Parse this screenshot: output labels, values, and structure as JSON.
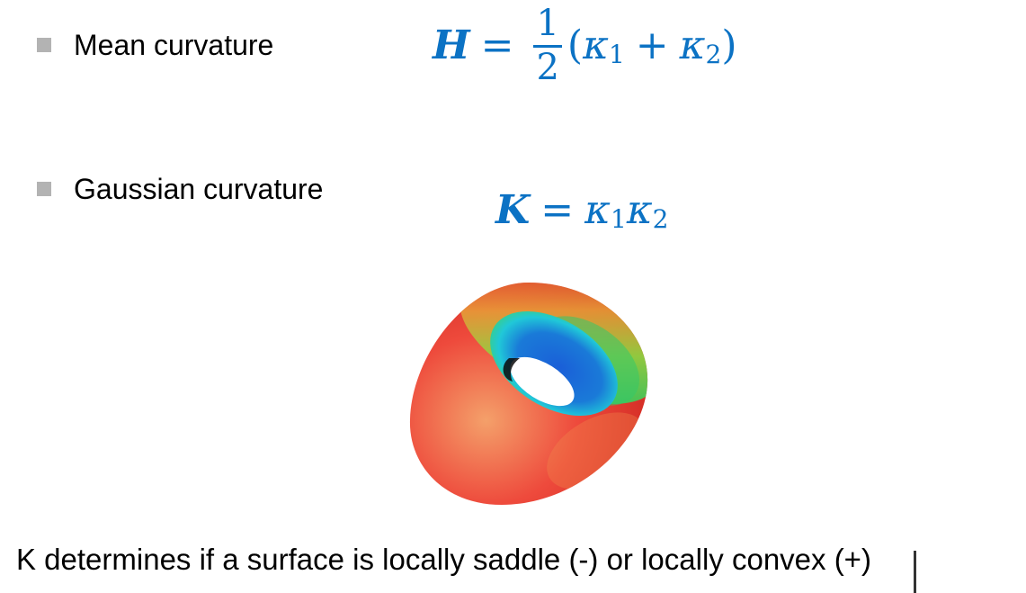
{
  "bullets": [
    {
      "label": "Mean curvature"
    },
    {
      "label": "Gaussian curvature"
    }
  ],
  "formulas": {
    "mean": {
      "lhs": "H",
      "equals": "=",
      "frac_num": "1",
      "frac_den": "2",
      "open_paren": "(",
      "kappa": "κ",
      "sub1": "1",
      "plus": "+",
      "sub2": "2",
      "close_paren": ")"
    },
    "gaussian": {
      "lhs": "K",
      "equals": "=",
      "kappa": "κ",
      "sub1": "1",
      "sub2": "2"
    }
  },
  "caption": "K determines if a surface is locally saddle (-) or locally convex (+)",
  "figure": {
    "icon": "torus-curvature-heatmap",
    "colors": {
      "red": "#f0403a",
      "orange": "#f07a3a",
      "yellow": "#d8d838",
      "green": "#3fc95a",
      "cyan": "#20d8d8",
      "blue": "#1a5fd8"
    }
  },
  "theme": {
    "formula_color": "#0b72c4",
    "bullet_color": "#b3b3b3"
  }
}
